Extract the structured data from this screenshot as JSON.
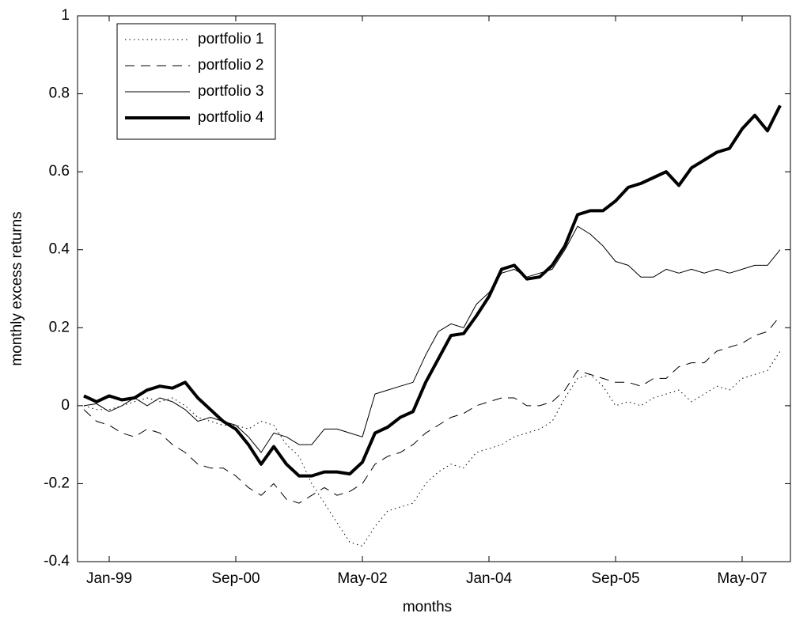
{
  "chart_data": {
    "type": "line",
    "x_label": "months",
    "y_label": "monthly excess returns",
    "categories": [
      null,
      null,
      "Jan-99",
      null,
      null,
      null,
      null,
      null,
      null,
      null,
      null,
      null,
      "Sep-00",
      null,
      null,
      null,
      null,
      null,
      null,
      null,
      null,
      null,
      "May-02",
      null,
      null,
      null,
      null,
      null,
      null,
      null,
      null,
      null,
      "Jan-04",
      null,
      null,
      null,
      null,
      null,
      null,
      null,
      null,
      null,
      "Sep-05",
      null,
      null,
      null,
      null,
      null,
      null,
      null,
      null,
      null,
      "May-07",
      null,
      null,
      null
    ],
    "ylim": [
      -0.4,
      1
    ],
    "yticks": [
      -0.4,
      -0.2,
      0,
      0.2,
      0.4,
      0.6,
      0.8,
      1
    ],
    "grid": false,
    "legend": "upper left",
    "series": [
      {
        "name": "portfolio 1",
        "color": "#000000",
        "style": "dotted",
        "width": 1,
        "values": [
          0.0,
          -0.01,
          -0.01,
          0.0,
          0.01,
          0.02,
          0.01,
          0.02,
          0.0,
          -0.03,
          -0.04,
          -0.05,
          -0.05,
          -0.06,
          -0.04,
          -0.05,
          -0.1,
          -0.13,
          -0.2,
          -0.25,
          -0.3,
          -0.35,
          -0.36,
          -0.31,
          -0.27,
          -0.26,
          -0.25,
          -0.2,
          -0.17,
          -0.15,
          -0.16,
          -0.12,
          -0.11,
          -0.1,
          -0.08,
          -0.07,
          -0.06,
          -0.04,
          0.02,
          0.07,
          0.08,
          0.05,
          0.0,
          0.01,
          0.0,
          0.02,
          0.03,
          0.04,
          0.01,
          0.03,
          0.05,
          0.04,
          0.07,
          0.08,
          0.09,
          0.14
        ]
      },
      {
        "name": "portfolio 2",
        "color": "#000000",
        "style": "dashed",
        "width": 1,
        "values": [
          -0.01,
          -0.04,
          -0.05,
          -0.07,
          -0.08,
          -0.06,
          -0.07,
          -0.1,
          -0.12,
          -0.15,
          -0.16,
          -0.16,
          -0.18,
          -0.21,
          -0.23,
          -0.2,
          -0.24,
          -0.25,
          -0.23,
          -0.21,
          -0.23,
          -0.22,
          -0.2,
          -0.15,
          -0.13,
          -0.12,
          -0.1,
          -0.07,
          -0.05,
          -0.03,
          -0.02,
          0.0,
          0.01,
          0.02,
          0.02,
          0.0,
          0.0,
          0.01,
          0.04,
          0.09,
          0.08,
          0.07,
          0.06,
          0.06,
          0.05,
          0.07,
          0.07,
          0.1,
          0.11,
          0.11,
          0.14,
          0.15,
          0.16,
          0.18,
          0.19,
          0.23
        ]
      },
      {
        "name": "portfolio 3",
        "color": "#000000",
        "style": "solid",
        "width": 1,
        "values": [
          0.0,
          0.005,
          -0.015,
          0.0,
          0.02,
          0.0,
          0.02,
          0.01,
          -0.01,
          -0.04,
          -0.03,
          -0.04,
          -0.05,
          -0.08,
          -0.12,
          -0.07,
          -0.08,
          -0.1,
          -0.1,
          -0.06,
          -0.06,
          -0.07,
          -0.08,
          0.03,
          0.04,
          0.05,
          0.06,
          0.13,
          0.19,
          0.21,
          0.2,
          0.26,
          0.29,
          0.34,
          0.35,
          0.33,
          0.34,
          0.35,
          0.4,
          0.46,
          0.44,
          0.41,
          0.37,
          0.36,
          0.33,
          0.33,
          0.35,
          0.34,
          0.35,
          0.34,
          0.35,
          0.34,
          0.35,
          0.36,
          0.36,
          0.4
        ]
      },
      {
        "name": "portfolio 4",
        "color": "#000000",
        "style": "solid",
        "width": 4,
        "values": [
          0.025,
          0.01,
          0.025,
          0.015,
          0.02,
          0.04,
          0.05,
          0.045,
          0.06,
          0.02,
          -0.01,
          -0.04,
          -0.06,
          -0.1,
          -0.15,
          -0.105,
          -0.15,
          -0.18,
          -0.18,
          -0.17,
          -0.17,
          -0.175,
          -0.145,
          -0.07,
          -0.055,
          -0.03,
          -0.015,
          0.06,
          0.12,
          0.18,
          0.185,
          0.23,
          0.28,
          0.35,
          0.36,
          0.325,
          0.33,
          0.36,
          0.41,
          0.49,
          0.5,
          0.5,
          0.525,
          0.56,
          0.57,
          0.585,
          0.6,
          0.565,
          0.61,
          0.63,
          0.65,
          0.66,
          0.71,
          0.745,
          0.705,
          0.77
        ]
      }
    ]
  }
}
